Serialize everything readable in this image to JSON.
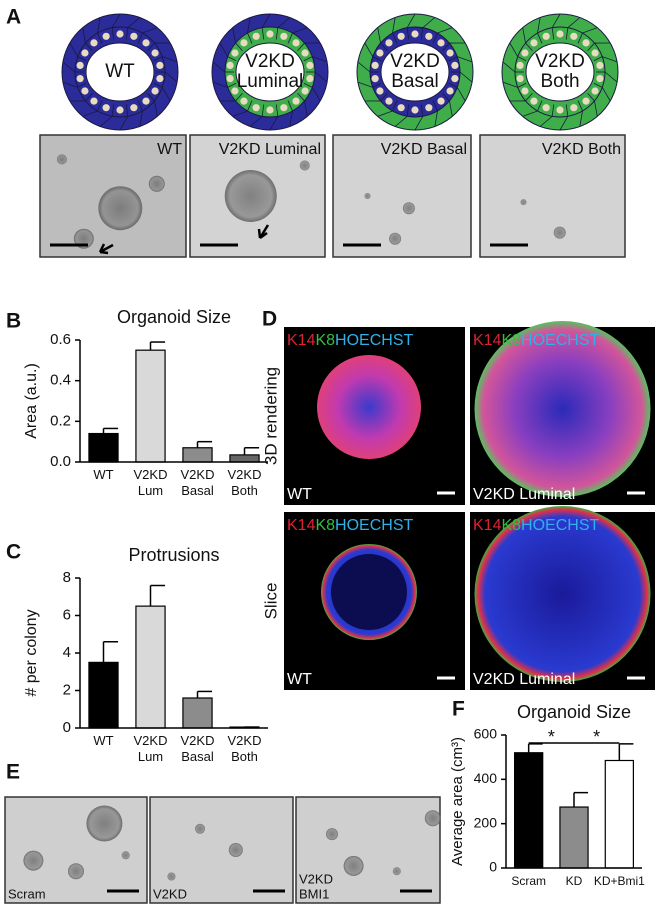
{
  "panels": {
    "labels": [
      "A",
      "B",
      "C",
      "D",
      "E",
      "F"
    ]
  },
  "panel_a": {
    "diagrams": [
      [
        "WT"
      ],
      [
        "V2KD",
        "Luminal"
      ],
      [
        "V2KD",
        "Basal"
      ],
      [
        "V2KD",
        "Both"
      ]
    ],
    "images": [
      "WT",
      "V2KD Luminal",
      "V2KD Basal",
      "V2KD Both"
    ]
  },
  "panel_d": {
    "stains": [
      "K14",
      "K8",
      "HOECHST"
    ],
    "rows": [
      "3D rendering",
      "Slice"
    ],
    "images": [
      "WT",
      "V2KD Luminal",
      "WT",
      "V2KD Luminal"
    ]
  },
  "panel_e": {
    "images": [
      [
        "Scram"
      ],
      [
        "V2KD"
      ],
      [
        "V2KD",
        "BMI1"
      ]
    ]
  },
  "chart_data": [
    {
      "type": "bar",
      "title": "Organoid Size",
      "ylabel": "Area (a.u.)",
      "categories": [
        "WT",
        "V2KD Lum",
        "V2KD Basal",
        "V2KD Both"
      ],
      "values": [
        0.14,
        0.55,
        0.07,
        0.035
      ],
      "errors": [
        0.025,
        0.04,
        0.03,
        0.035
      ],
      "colors": [
        "#000000",
        "#d9d9d9",
        "#8c8c8c",
        "#666666"
      ],
      "ylim": [
        0,
        0.6
      ],
      "yticks": [
        {
          "value": 0,
          "label": "0.0"
        },
        0.2,
        0.4,
        0.6
      ]
    },
    {
      "type": "bar",
      "title": "Protrusions",
      "ylabel": "# per colony",
      "categories": [
        "WT",
        "V2KD Lum",
        "V2KD Basal",
        "V2KD Both"
      ],
      "values": [
        3.5,
        6.5,
        1.6,
        0.05
      ],
      "errors": [
        1.1,
        1.1,
        0.35,
        0
      ],
      "colors": [
        "#000000",
        "#d9d9d9",
        "#8c8c8c",
        "#666666"
      ],
      "ylim": [
        0,
        8
      ],
      "yticks": [
        0,
        2,
        4,
        6,
        8
      ]
    },
    {
      "type": "bar",
      "title": "Organoid Size",
      "ylabel": "Average area (cm³)",
      "categories": [
        "Scram",
        "KD",
        "KD+Bmi1"
      ],
      "values": [
        520,
        275,
        485
      ],
      "errors": [
        40,
        65,
        75
      ],
      "colors": [
        "#000000",
        "#8c8c8c",
        "#ffffff"
      ],
      "ylim": [
        0,
        600
      ],
      "yticks": [
        0,
        200,
        400,
        600
      ],
      "annotations": [
        "*",
        "*"
      ]
    }
  ]
}
